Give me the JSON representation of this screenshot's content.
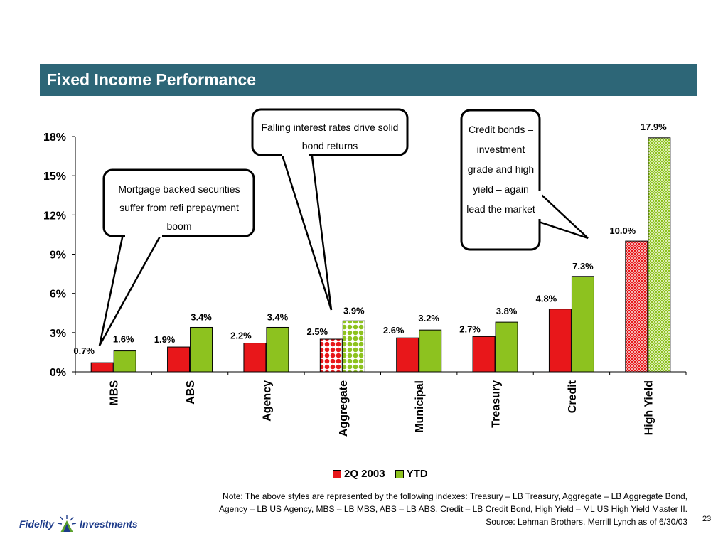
{
  "header": {
    "title": "Fixed Income Performance"
  },
  "callouts": {
    "mortgage": "Mortgage backed securities suffer from refi prepayment boom",
    "falling_rates": "Falling interest rates drive solid bond returns",
    "credit": "Credit bonds – investment grade and high yield – again lead the market"
  },
  "chart_data": {
    "type": "bar",
    "categories": [
      "MBS",
      "ABS",
      "Agency",
      "Aggregate",
      "Municipal",
      "Treasury",
      "Credit",
      "High Yield"
    ],
    "series": [
      {
        "name": "2Q 2003",
        "values": [
          0.7,
          1.9,
          2.2,
          2.5,
          2.6,
          2.7,
          4.8,
          10.0
        ],
        "labels": [
          "0.7%",
          "1.9%",
          "2.2%",
          "2.5%",
          "2.6%",
          "2.7%",
          "4.8%",
          "10.0%"
        ],
        "color": "#e8171a"
      },
      {
        "name": "YTD",
        "values": [
          1.6,
          3.4,
          3.4,
          3.9,
          3.2,
          3.8,
          7.3,
          17.9
        ],
        "labels": [
          "1.6%",
          "3.4%",
          "3.4%",
          "3.9%",
          "3.2%",
          "3.8%",
          "7.3%",
          "17.9%"
        ],
        "color": "#8dc21f"
      }
    ],
    "ylim": [
      0,
      18
    ],
    "yticks": [
      "0%",
      "3%",
      "6%",
      "9%",
      "12%",
      "15%",
      "18%"
    ],
    "ytick_values": [
      0,
      3,
      6,
      9,
      12,
      15,
      18
    ],
    "legend_position": "bottom",
    "grid": false
  },
  "legend": {
    "items": [
      "2Q 2003",
      "YTD"
    ]
  },
  "footer": {
    "note_line1": "Note: The above styles are represented by the following indexes: Treasury – LB Treasury, Aggregate – LB Aggregate Bond,",
    "note_line2": "Agency  – LB US Agency, MBS –  LB MBS,  ABS – LB ABS, Credit – LB Credit Bond, High Yield – ML US High Yield Master II.",
    "source": "Source: Lehman Brothers, Merrill Lynch as of 6/30/03",
    "page_number": "23",
    "logo_left": "Fidelity",
    "logo_right": "Investments"
  }
}
